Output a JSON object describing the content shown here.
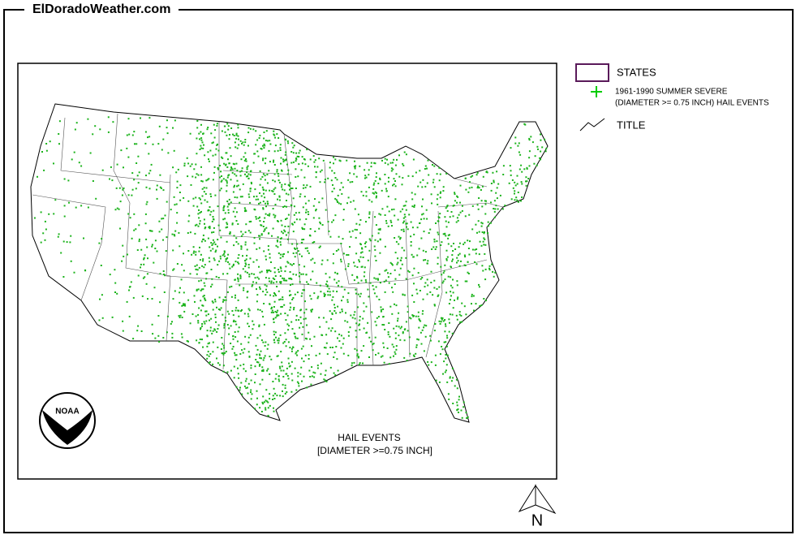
{
  "header": {
    "site": "ElDoradoWeather.com"
  },
  "legend": {
    "states": "STATES",
    "hail": [
      "1961-1990 SUMMER SEVERE",
      "(DIAMETER >= 0.75 INCH) HAIL EVENTS"
    ],
    "title": "TITLE"
  },
  "map": {
    "title": [
      "HAIL EVENTS",
      "[DIAMETER >=0.75 INCH]"
    ],
    "north": "N",
    "logo": "NOAA"
  }
}
